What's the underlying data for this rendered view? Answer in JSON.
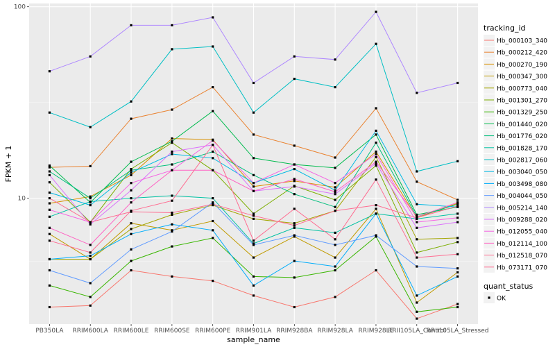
{
  "chart_data": {
    "type": "line",
    "xlabel": "sample_name",
    "ylabel": "FPKM + 1",
    "y_scale": "log10",
    "ylim": [
      2.2,
      104
    ],
    "y_ticks": [
      10,
      100
    ],
    "y_tick_labels": [
      "10",
      "100"
    ],
    "grid": true,
    "panel_background": "#ebebeb",
    "legend_position": "right",
    "categories": [
      "PB350LA",
      "RRIM600LA",
      "RRIM600LE",
      "RRIM600SE",
      "RRIM600PE",
      "RRIM901LA",
      "RRIM928BA",
      "RRIM928LA",
      "RRIM928LE",
      "RRII105LA_Control",
      "RRII105LA_Stressed"
    ],
    "legend": {
      "color_title": "tracking_id",
      "shape_title": "quant_status",
      "shape_entries": [
        "OK"
      ]
    },
    "series": [
      {
        "name": "Hb_000103_340",
        "color": "#F8766D",
        "values": [
          2.7,
          2.75,
          4.2,
          3.9,
          3.7,
          3.1,
          2.7,
          3.05,
          4.2,
          2.35,
          2.8
        ]
      },
      {
        "name": "Hb_000212_420",
        "color": "#EA8331",
        "values": [
          14.5,
          14.7,
          26,
          29,
          38,
          21.5,
          18.8,
          16.3,
          29.5,
          12.2,
          9.8
        ]
      },
      {
        "name": "Hb_000270_190",
        "color": "#D89000",
        "values": [
          9.4,
          10.2,
          13.2,
          20.5,
          20.2,
          11.5,
          12.3,
          11.4,
          17.5,
          7.9,
          9.4
        ]
      },
      {
        "name": "Hb_000347_300",
        "color": "#C09B00",
        "values": [
          6.5,
          4.8,
          7.4,
          6.8,
          7.6,
          4.9,
          6.3,
          4.9,
          8.8,
          2.85,
          4.1
        ]
      },
      {
        "name": "Hb_000773_040",
        "color": "#A3A500",
        "values": [
          4.8,
          4.8,
          6.9,
          8.2,
          9.2,
          7.8,
          7.4,
          8.6,
          16.4,
          6.1,
          6.2
        ]
      },
      {
        "name": "Hb_001301_270",
        "color": "#7CAE00",
        "values": [
          12.1,
          7.5,
          14.2,
          19.5,
          14.0,
          8.3,
          11.6,
          9.8,
          14.8,
          5.2,
          5.9
        ]
      },
      {
        "name": "Hb_001329_250",
        "color": "#39B600",
        "values": [
          3.5,
          3.05,
          4.7,
          5.6,
          6.2,
          3.9,
          3.85,
          4.2,
          6.3,
          2.55,
          2.7
        ]
      },
      {
        "name": "Hb_001440_020",
        "color": "#00BB4E",
        "values": [
          14.8,
          9.5,
          15.5,
          19.8,
          28.5,
          16.2,
          15.0,
          14.4,
          21.5,
          8.2,
          9.0
        ]
      },
      {
        "name": "Hb_001776_020",
        "color": "#00BF7D",
        "values": [
          13.8,
          10.0,
          14.0,
          15.0,
          17.5,
          13.2,
          10.5,
          9.0,
          19.5,
          8.0,
          9.3
        ]
      },
      {
        "name": "Hb_001828_170",
        "color": "#00C1A3",
        "values": [
          8.0,
          9.6,
          10.0,
          10.3,
          10.0,
          5.8,
          7.0,
          6.6,
          8.3,
          7.8,
          8.3
        ]
      },
      {
        "name": "Hb_002817_060",
        "color": "#00BFC4",
        "values": [
          28.0,
          23.5,
          32.0,
          60.0,
          62.0,
          28.0,
          42.0,
          38.0,
          64.0,
          13.8,
          15.6
        ]
      },
      {
        "name": "Hb_003040_050",
        "color": "#00B9E3",
        "values": [
          10.7,
          9.2,
          13.6,
          17.0,
          16.2,
          12.0,
          14.2,
          11.0,
          22.5,
          9.3,
          9.0
        ]
      },
      {
        "name": "Hb_003498_080",
        "color": "#00ADFA",
        "values": [
          4.8,
          5.0,
          6.5,
          7.3,
          6.8,
          3.5,
          4.7,
          4.4,
          8.3,
          3.1,
          3.9
        ]
      },
      {
        "name": "Hb_004044_050",
        "color": "#619CFF",
        "values": [
          4.2,
          3.6,
          5.4,
          6.7,
          9.5,
          5.7,
          6.4,
          5.7,
          6.4,
          4.4,
          4.3
        ]
      },
      {
        "name": "Hb_005214_140",
        "color": "#AE87FF",
        "values": [
          46,
          55,
          80,
          80,
          88,
          40,
          55,
          53,
          94,
          35.5,
          40
        ]
      },
      {
        "name": "Hb_009288_020",
        "color": "#DB72FB",
        "values": [
          13.2,
          7.3,
          11.0,
          17.5,
          19.0,
          10.9,
          11.5,
          10.5,
          15.2,
          7.0,
          7.5
        ]
      },
      {
        "name": "Hb_012055_040",
        "color": "#F564E3",
        "values": [
          8.7,
          7.5,
          12.0,
          14.0,
          20.0,
          12.0,
          15.0,
          12.0,
          17.0,
          7.5,
          7.9
        ]
      },
      {
        "name": "Hb_012114_100",
        "color": "#FF61C3",
        "values": [
          7.0,
          5.7,
          9.5,
          14.0,
          14.0,
          10.9,
          12.6,
          10.8,
          15.5,
          8.0,
          9.5
        ]
      },
      {
        "name": "Hb_012518_070",
        "color": "#FF6C91",
        "values": [
          6.0,
          5.2,
          8.6,
          9.7,
          19.0,
          6.0,
          8.8,
          6.1,
          12.5,
          4.9,
          5.1
        ]
      },
      {
        "name": "Hb_073171_070",
        "color": "#FF6C91",
        "values": [
          10.0,
          7.5,
          8.5,
          8.4,
          9.3,
          8.1,
          7.2,
          8.6,
          9.2,
          7.9,
          9.1
        ]
      }
    ]
  }
}
